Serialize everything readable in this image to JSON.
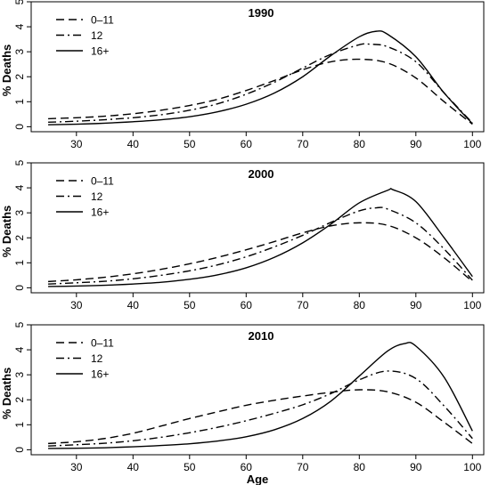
{
  "chart_data": [
    {
      "type": "line",
      "title": "1990",
      "ylabel": "% Deaths",
      "xlabel": "",
      "xlim": [
        22,
        102
      ],
      "ylim": [
        -0.2,
        5
      ],
      "xticks": [
        30,
        40,
        50,
        60,
        70,
        80,
        90,
        100
      ],
      "yticks": [
        0,
        1,
        2,
        3,
        4,
        5
      ],
      "grid": false,
      "legend_position": "top-left",
      "series": [
        {
          "name": "0–11",
          "dash": "dashed",
          "x": [
            25,
            30,
            35,
            40,
            45,
            50,
            55,
            60,
            65,
            70,
            75,
            80,
            85,
            90,
            95,
            100
          ],
          "y": [
            0.32,
            0.36,
            0.42,
            0.52,
            0.66,
            0.85,
            1.1,
            1.45,
            1.85,
            2.28,
            2.6,
            2.7,
            2.55,
            1.95,
            1.0,
            0.1
          ]
        },
        {
          "name": "12",
          "dash": "dashdot",
          "x": [
            25,
            30,
            35,
            40,
            45,
            50,
            55,
            60,
            65,
            70,
            75,
            80,
            82,
            85,
            90,
            95,
            100
          ],
          "y": [
            0.18,
            0.22,
            0.28,
            0.36,
            0.48,
            0.66,
            0.92,
            1.3,
            1.78,
            2.35,
            2.9,
            3.28,
            3.3,
            3.2,
            2.6,
            1.35,
            0.15
          ]
        },
        {
          "name": "16+",
          "dash": "solid",
          "x": [
            25,
            30,
            35,
            40,
            45,
            50,
            55,
            60,
            65,
            70,
            75,
            80,
            83,
            85,
            90,
            95,
            100
          ],
          "y": [
            0.08,
            0.1,
            0.14,
            0.2,
            0.28,
            0.4,
            0.6,
            0.9,
            1.35,
            2.0,
            2.85,
            3.6,
            3.82,
            3.7,
            2.8,
            1.35,
            0.12
          ]
        }
      ]
    },
    {
      "type": "line",
      "title": "2000",
      "ylabel": "% Deaths",
      "xlabel": "",
      "xlim": [
        22,
        102
      ],
      "ylim": [
        -0.2,
        5
      ],
      "xticks": [
        30,
        40,
        50,
        60,
        70,
        80,
        90,
        100
      ],
      "yticks": [
        0,
        1,
        2,
        3,
        4,
        5
      ],
      "grid": false,
      "legend_position": "top-left",
      "series": [
        {
          "name": "0–11",
          "dash": "dashed",
          "x": [
            25,
            30,
            35,
            40,
            45,
            50,
            55,
            60,
            65,
            70,
            75,
            80,
            85,
            90,
            95,
            100
          ],
          "y": [
            0.25,
            0.32,
            0.42,
            0.56,
            0.74,
            0.96,
            1.22,
            1.52,
            1.85,
            2.2,
            2.48,
            2.6,
            2.5,
            2.0,
            1.2,
            0.25
          ]
        },
        {
          "name": "12",
          "dash": "dashdot",
          "x": [
            25,
            30,
            35,
            40,
            45,
            50,
            55,
            60,
            65,
            70,
            75,
            80,
            83,
            85,
            90,
            95,
            100
          ],
          "y": [
            0.15,
            0.2,
            0.26,
            0.36,
            0.5,
            0.68,
            0.92,
            1.24,
            1.64,
            2.1,
            2.62,
            3.08,
            3.2,
            3.15,
            2.6,
            1.55,
            0.3
          ]
        },
        {
          "name": "16+",
          "dash": "solid",
          "x": [
            25,
            30,
            35,
            40,
            45,
            50,
            55,
            60,
            65,
            70,
            75,
            80,
            85,
            86,
            90,
            95,
            100
          ],
          "y": [
            0.05,
            0.07,
            0.1,
            0.15,
            0.22,
            0.34,
            0.52,
            0.8,
            1.22,
            1.8,
            2.55,
            3.4,
            3.9,
            3.92,
            3.45,
            2.0,
            0.45
          ]
        }
      ]
    },
    {
      "type": "line",
      "title": "2010",
      "ylabel": "% Deaths",
      "xlabel": "Age",
      "xlim": [
        22,
        102
      ],
      "ylim": [
        -0.2,
        5
      ],
      "xticks": [
        30,
        40,
        50,
        60,
        70,
        80,
        90,
        100
      ],
      "yticks": [
        0,
        1,
        2,
        3,
        4,
        5
      ],
      "grid": false,
      "legend_position": "top-left",
      "series": [
        {
          "name": "0–11",
          "dash": "dashed",
          "x": [
            25,
            30,
            35,
            40,
            45,
            50,
            55,
            60,
            65,
            70,
            75,
            80,
            85,
            90,
            95,
            100
          ],
          "y": [
            0.25,
            0.32,
            0.45,
            0.66,
            0.95,
            1.25,
            1.52,
            1.78,
            1.98,
            2.15,
            2.3,
            2.4,
            2.32,
            1.9,
            1.1,
            0.25
          ]
        },
        {
          "name": "12",
          "dash": "dashdot",
          "x": [
            25,
            30,
            35,
            40,
            45,
            50,
            55,
            60,
            65,
            70,
            75,
            80,
            85,
            90,
            95,
            100
          ],
          "y": [
            0.15,
            0.2,
            0.26,
            0.36,
            0.5,
            0.68,
            0.9,
            1.16,
            1.46,
            1.8,
            2.25,
            2.8,
            3.15,
            2.85,
            1.75,
            0.45
          ]
        },
        {
          "name": "16+",
          "dash": "solid",
          "x": [
            25,
            30,
            35,
            40,
            45,
            50,
            55,
            60,
            65,
            70,
            75,
            80,
            85,
            88,
            90,
            95,
            100
          ],
          "y": [
            0.05,
            0.06,
            0.08,
            0.12,
            0.17,
            0.24,
            0.35,
            0.52,
            0.8,
            1.25,
            1.95,
            2.95,
            3.95,
            4.25,
            4.15,
            2.9,
            0.75
          ]
        }
      ]
    }
  ]
}
